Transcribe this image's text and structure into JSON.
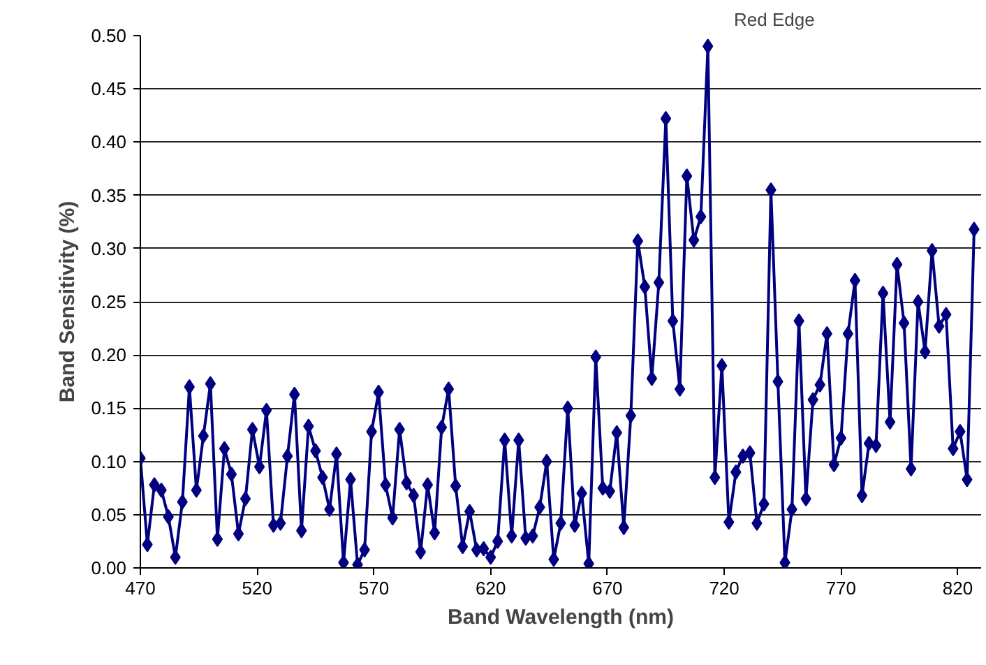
{
  "chart_data": {
    "type": "line",
    "xlabel": "Band Wavelength (nm)",
    "ylabel": "Band Sensitivity (%)",
    "annotations": [
      "Red Edge"
    ],
    "x": [
      470,
      473,
      476,
      479,
      482,
      485,
      488,
      491,
      494,
      497,
      500,
      503,
      506,
      509,
      512,
      515,
      518,
      521,
      524,
      527,
      530,
      533,
      536,
      539,
      542,
      545,
      548,
      551,
      554,
      557,
      560,
      563,
      566,
      569,
      572,
      575,
      578,
      581,
      584,
      587,
      590,
      593,
      596,
      599,
      602,
      605,
      608,
      611,
      614,
      617,
      620,
      623,
      626,
      629,
      632,
      635,
      638,
      641,
      644,
      647,
      650,
      653,
      656,
      659,
      662,
      665,
      668,
      671,
      674,
      677,
      680,
      683,
      686,
      689,
      692,
      695,
      698,
      701,
      704,
      707,
      710,
      713,
      716,
      719,
      722,
      725,
      728,
      731,
      734,
      737,
      740,
      743,
      746,
      749,
      752,
      755,
      758,
      761,
      764,
      767,
      770,
      773,
      776,
      779,
      782,
      785,
      788,
      791,
      794,
      797,
      800,
      803,
      806,
      809,
      812,
      815,
      818,
      821,
      824,
      827
    ],
    "series": [
      {
        "color": "#000080",
        "values": [
          0.103,
          0.022,
          0.078,
          0.073,
          0.048,
          0.01,
          0.062,
          0.17,
          0.073,
          0.124,
          0.173,
          0.027,
          0.112,
          0.088,
          0.032,
          0.065,
          0.13,
          0.095,
          0.148,
          0.04,
          0.042,
          0.105,
          0.163,
          0.035,
          0.133,
          0.11,
          0.085,
          0.055,
          0.107,
          0.005,
          0.083,
          0.003,
          0.017,
          0.128,
          0.165,
          0.078,
          0.047,
          0.13,
          0.08,
          0.068,
          0.015,
          0.078,
          0.033,
          0.132,
          0.168,
          0.077,
          0.02,
          0.053,
          0.017,
          0.018,
          0.01,
          0.025,
          0.12,
          0.03,
          0.12,
          0.028,
          0.03,
          0.057,
          0.1,
          0.008,
          0.042,
          0.15,
          0.04,
          0.07,
          0.004,
          0.198,
          0.075,
          0.072,
          0.127,
          0.038,
          0.143,
          0.307,
          0.264,
          0.178,
          0.268,
          0.422,
          0.232,
          0.168,
          0.368,
          0.308,
          0.33,
          0.49,
          0.085,
          0.19,
          0.043,
          0.09,
          0.105,
          0.108,
          0.042,
          0.06,
          0.355,
          0.175,
          0.005,
          0.055,
          0.232,
          0.065,
          0.158,
          0.172,
          0.22,
          0.097,
          0.122,
          0.22,
          0.27,
          0.068,
          0.117,
          0.115,
          0.258,
          0.137,
          0.285,
          0.23,
          0.093,
          0.25,
          0.203,
          0.298,
          0.227,
          0.238,
          0.112,
          0.128,
          0.083,
          0.318
        ]
      }
    ],
    "xlim": [
      470,
      830
    ],
    "xticks": [
      470,
      520,
      570,
      620,
      670,
      720,
      770,
      820
    ],
    "ylim": [
      0,
      0.5
    ],
    "yticks": [
      {
        "value": 0,
        "label": "0.00"
      },
      {
        "value": 0.05,
        "label": "0.05"
      },
      {
        "value": 0.1,
        "label": "0.10"
      },
      {
        "value": 0.15,
        "label": "0.15"
      },
      {
        "value": 0.2,
        "label": "0.20"
      },
      {
        "value": 0.25,
        "label": "0.25"
      },
      {
        "value": 0.3,
        "label": "0.30"
      },
      {
        "value": 0.35,
        "label": "0.35"
      },
      {
        "value": 0.4,
        "label": "0.40"
      },
      {
        "value": 0.45,
        "label": "0.45"
      },
      {
        "value": 0.5,
        "label": "0.50"
      }
    ],
    "grid": "y",
    "marker": "diamond",
    "line_style": "solid"
  }
}
